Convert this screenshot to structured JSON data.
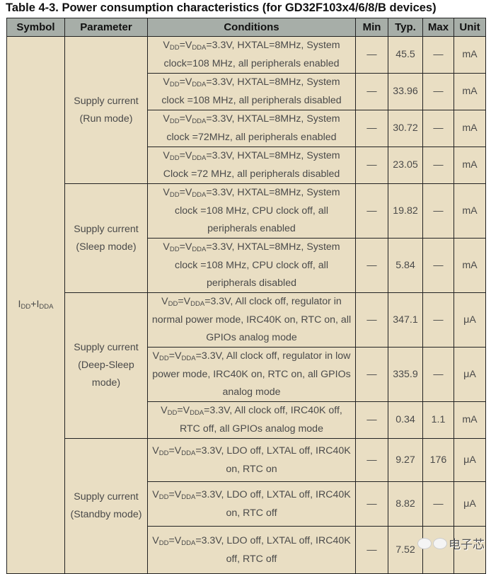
{
  "title": "Table 4-3. Power consumption characteristics (for GD32F103x4/6/8/B devices)",
  "headers": [
    "Symbol",
    "Parameter",
    "Conditions",
    "Min",
    "Typ.",
    "Max",
    "Unit"
  ],
  "symbol": {
    "i1": "I",
    "s1": "DD",
    "plus": "+I",
    "s2": "DDA"
  },
  "cond_prefix": {
    "v": "V",
    "dd": "DD",
    "eq": "=V",
    "dda": "DDA"
  },
  "groups": [
    {
      "param": "Supply current (Run mode)",
      "rows": [
        {
          "cond": "=3.3V, HXTAL=8MHz, System clock=108 MHz, all peripherals enabled",
          "min": "—",
          "typ": "45.5",
          "max": "—",
          "unit": "mA"
        },
        {
          "cond": "=3.3V, HXTAL=8MHz, System clock =108 MHz, all peripherals disabled",
          "min": "—",
          "typ": "33.96",
          "max": "—",
          "unit": "mA"
        },
        {
          "cond": "=3.3V, HXTAL=8MHz, System clock =72MHz, all peripherals enabled",
          "min": "—",
          "typ": "30.72",
          "max": "—",
          "unit": "mA"
        },
        {
          "cond": "=3.3V, HXTAL=8MHz, System Clock =72 MHz, all peripherals disabled",
          "min": "—",
          "typ": "23.05",
          "max": "—",
          "unit": "mA"
        }
      ]
    },
    {
      "param": "Supply current (Sleep mode)",
      "rows": [
        {
          "cond": "=3.3V, HXTAL=8MHz, System clock =108 MHz, CPU clock off, all peripherals enabled",
          "min": "—",
          "typ": "19.82",
          "max": "—",
          "unit": "mA"
        },
        {
          "cond": "=3.3V, HXTAL=8MHz, System clock =108 MHz, CPU clock off, all peripherals disabled",
          "min": "—",
          "typ": "5.84",
          "max": "—",
          "unit": "mA"
        }
      ]
    },
    {
      "param": "Supply current (Deep-Sleep mode)",
      "rows": [
        {
          "cond": "=3.3V, All clock off, regulator in normal power mode, IRC40K on, RTC on, all GPIOs analog mode",
          "min": "—",
          "typ": "347.1",
          "max": "—",
          "unit": "μA"
        },
        {
          "cond": "=3.3V, All clock off, regulator in low power mode, IRC40K on, RTC on, all GPIOs analog mode",
          "min": "—",
          "typ": "335.9",
          "max": "—",
          "unit": "μA"
        },
        {
          "cond": "=3.3V, All clock off, IRC40K off, RTC off, all GPIOs analog mode",
          "min": "—",
          "typ": "0.34",
          "max": "1.1",
          "unit": "mA"
        }
      ]
    },
    {
      "param": "Supply current (Standby mode)",
      "rows": [
        {
          "cond": "=3.3V, LDO off, LXTAL off, IRC40K on, RTC on",
          "min": "—",
          "typ": "9.27",
          "max": "176",
          "unit": "μA"
        },
        {
          "cond": "=3.3V, LDO off, LXTAL off, IRC40K on, RTC off",
          "min": "—",
          "typ": "8.82",
          "max": "—",
          "unit": "μA"
        },
        {
          "cond": "=3.3V, LDO off, LXTAL off, IRC40K off, RTC off",
          "min": "—",
          "typ": "7.52",
          "max": "",
          "unit": ""
        }
      ]
    }
  ],
  "watermark": "电子芯"
}
